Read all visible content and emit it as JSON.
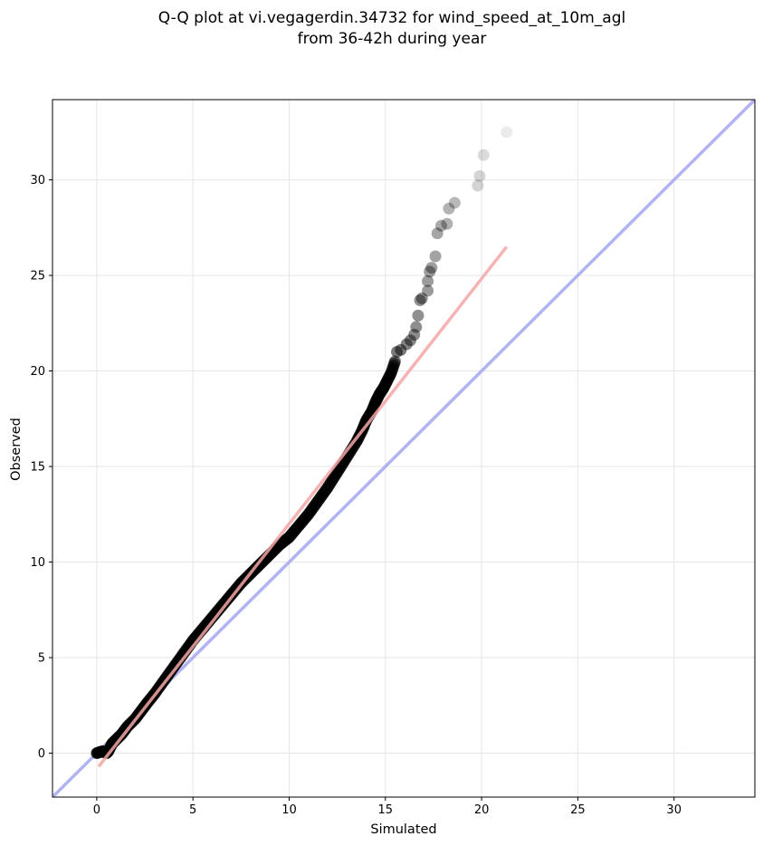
{
  "chart_data": {
    "type": "scatter",
    "title": "Q-Q plot at vi.vegagerdin.34732 for wind_speed_at_10m_agl",
    "subtitle": "from 36-42h during year",
    "xlabel": "Simulated",
    "ylabel": "Observed",
    "xlim": [
      -2.3,
      34.2
    ],
    "ylim": [
      -2.3,
      34.2
    ],
    "xticks": [
      0,
      5,
      10,
      15,
      20,
      25,
      30
    ],
    "yticks": [
      0,
      5,
      10,
      15,
      20,
      25,
      30
    ],
    "grid": true,
    "legend": "none",
    "colors": {
      "points": "#000000",
      "fit_line": "#f4a6a6",
      "identity_line": "#a8abf4",
      "grid": "#e6e6e6"
    },
    "fit_line": {
      "x": [
        0.1,
        21.3
      ],
      "y": [
        -0.7,
        26.5
      ]
    },
    "identity_line": {
      "x": [
        -2.3,
        34.2
      ],
      "y": [
        -2.3,
        34.2
      ]
    },
    "quantiles": [
      [
        0.0,
        0.0
      ],
      [
        0.3,
        0.1
      ],
      [
        0.5,
        0.0
      ],
      [
        0.6,
        0.1
      ],
      [
        0.8,
        0.5
      ],
      [
        1.0,
        0.7
      ],
      [
        1.3,
        1.0
      ],
      [
        1.6,
        1.4
      ],
      [
        2.0,
        1.8
      ],
      [
        2.3,
        2.2
      ],
      [
        2.6,
        2.6
      ],
      [
        3.0,
        3.1
      ],
      [
        3.5,
        3.8
      ],
      [
        4.0,
        4.5
      ],
      [
        4.5,
        5.2
      ],
      [
        5.0,
        5.9
      ],
      [
        5.5,
        6.5
      ],
      [
        6.0,
        7.1
      ],
      [
        6.5,
        7.7
      ],
      [
        7.0,
        8.3
      ],
      [
        7.5,
        8.9
      ],
      [
        8.0,
        9.4
      ],
      [
        8.5,
        9.9
      ],
      [
        9.0,
        10.4
      ],
      [
        9.5,
        10.9
      ],
      [
        10.0,
        11.3
      ],
      [
        10.5,
        11.9
      ],
      [
        11.0,
        12.5
      ],
      [
        11.5,
        13.2
      ],
      [
        12.0,
        13.9
      ],
      [
        12.5,
        14.7
      ],
      [
        13.0,
        15.5
      ],
      [
        13.5,
        16.3
      ],
      [
        13.8,
        16.9
      ],
      [
        14.0,
        17.4
      ],
      [
        14.3,
        17.9
      ],
      [
        14.5,
        18.4
      ],
      [
        14.7,
        18.8
      ],
      [
        14.9,
        19.1
      ],
      [
        15.1,
        19.5
      ],
      [
        15.3,
        19.9
      ],
      [
        15.5,
        20.5
      ],
      [
        15.6,
        21.0
      ],
      [
        15.8,
        21.1
      ],
      [
        16.1,
        21.4
      ],
      [
        16.3,
        21.6
      ],
      [
        16.5,
        21.9
      ],
      [
        16.6,
        22.3
      ],
      [
        16.7,
        22.9
      ],
      [
        16.8,
        23.7
      ],
      [
        16.9,
        23.8
      ],
      [
        17.2,
        24.2
      ],
      [
        17.2,
        24.7
      ],
      [
        17.3,
        25.2
      ],
      [
        17.4,
        25.4
      ],
      [
        17.6,
        26.0
      ],
      [
        17.7,
        27.2
      ],
      [
        17.9,
        27.6
      ],
      [
        18.2,
        27.7
      ],
      [
        18.3,
        28.5
      ],
      [
        18.6,
        28.8
      ],
      [
        19.8,
        29.7
      ],
      [
        19.9,
        30.2
      ],
      [
        20.1,
        31.3
      ],
      [
        21.3,
        32.5
      ]
    ]
  }
}
